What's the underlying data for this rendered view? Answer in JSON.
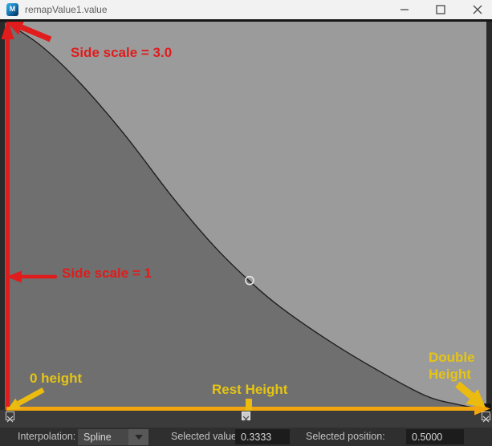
{
  "titlebar": {
    "title": "remapValue1.value",
    "controls": [
      "minimize",
      "maximize",
      "close"
    ]
  },
  "chart_data": {
    "type": "line",
    "interpolation": "Spline",
    "xlim": [
      0,
      1
    ],
    "ylim": [
      0,
      1
    ],
    "control_points": [
      {
        "position": 0.0,
        "value": 1.0,
        "selected": false
      },
      {
        "position": 0.5,
        "value": 0.3333,
        "selected": true
      },
      {
        "position": 1.0,
        "value": 0.0,
        "selected": false
      }
    ],
    "curve_samples": [
      [
        0.0,
        1.0
      ],
      [
        0.075,
        0.938
      ],
      [
        0.157,
        0.841
      ],
      [
        0.25,
        0.707
      ],
      [
        0.35,
        0.545
      ],
      [
        0.433,
        0.424
      ],
      [
        0.507,
        0.333
      ],
      [
        0.573,
        0.264
      ],
      [
        0.673,
        0.178
      ],
      [
        0.773,
        0.103
      ],
      [
        0.873,
        0.037
      ],
      [
        0.94,
        0.014
      ],
      [
        1.0,
        0.0
      ]
    ],
    "region_above_color": "#9b9b9b",
    "region_below_color": "#6f6f6f",
    "curve_color": "#1f1f1f",
    "ring_color": "#e8e8e8",
    "marker_fill": "#3a3a3a",
    "marker_selected_fill": "#cbcbcb"
  },
  "annotations": {
    "side_scale_3": {
      "text": "Side scale = 3.0",
      "color": "#e01c1c"
    },
    "side_scale_1": {
      "text": "Side scale = 1",
      "color": "#e01c1c"
    },
    "zero_height": {
      "text": "0 height",
      "color": "#e6c414"
    },
    "rest_height": {
      "text": "Rest Height",
      "color": "#e6c414"
    },
    "double_height": {
      "text": "Double Height",
      "color": "#e6c414"
    }
  },
  "footer": {
    "interpolation_label": "Interpolation:",
    "interpolation_value": "Spline",
    "selected_value_label": "Selected value:",
    "selected_value": "0.3333",
    "selected_position_label": "Selected position:",
    "selected_position": "0.5000"
  },
  "colors": {
    "titlebar_bg": "#f2f2f2",
    "window_frame": "#2a2a2a",
    "footer_bg": "#2f2f2f",
    "accent_red": "#e01c1c",
    "accent_yellow_line": "#f2a50c",
    "accent_yellow_arrow": "#ecbb10",
    "annotation_text_yellow": "#e6c414"
  }
}
